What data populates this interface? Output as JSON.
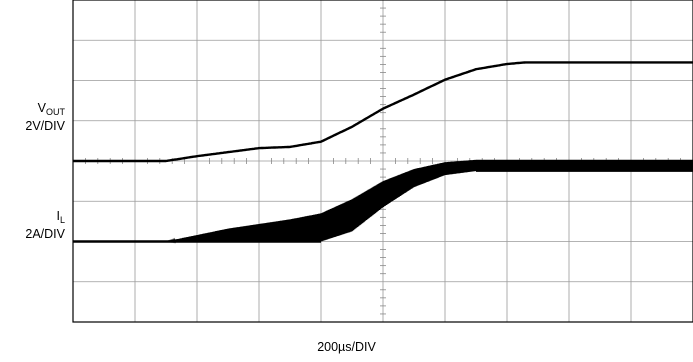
{
  "chart_data": {
    "type": "line",
    "title": "",
    "xlabel": "200µs/DIV",
    "x_unit": "µs",
    "xlim": [
      0,
      2000
    ],
    "x_divisions": 10,
    "y_divisions": 8,
    "grid": true,
    "series": [
      {
        "name": "VOUT",
        "scale": "2V/DIV",
        "x": [
          0,
          160,
          300,
          400,
          500,
          600,
          700,
          800,
          900,
          1000,
          1100,
          1200,
          1300,
          1400,
          1460,
          1500,
          1600,
          1700,
          1800,
          1900,
          2000
        ],
        "y": [
          0,
          0,
          0,
          0.12,
          0.22,
          0.32,
          0.35,
          0.48,
          0.85,
          1.3,
          1.65,
          2.02,
          2.28,
          2.41,
          2.45,
          2.45,
          2.45,
          2.45,
          2.45,
          2.45,
          2.45
        ]
      },
      {
        "name": "IL",
        "scale": "2A/DIV",
        "x": [
          0,
          300,
          500,
          700,
          800,
          900,
          1000,
          1100,
          1200,
          1300,
          1400,
          1500,
          1600,
          1700,
          1800,
          1900,
          2000
        ],
        "y_min": [
          0,
          0,
          0,
          0,
          0,
          0.25,
          0.85,
          1.35,
          1.65,
          1.75,
          1.75,
          1.75,
          1.75,
          1.75,
          1.75,
          1.75,
          1.75
        ],
        "y_max": [
          0,
          0,
          0.32,
          0.55,
          0.7,
          1.05,
          1.5,
          1.8,
          1.97,
          2.03,
          2.03,
          2.03,
          2.03,
          2.03,
          2.03,
          2.03,
          2.03
        ]
      }
    ]
  },
  "labels": {
    "vout_main": "V",
    "vout_sub": "OUT",
    "vout_scale": "2V/DIV",
    "il_main": "I",
    "il_sub": "L",
    "il_scale": "2A/DIV",
    "time_scale": "200µs/DIV"
  }
}
